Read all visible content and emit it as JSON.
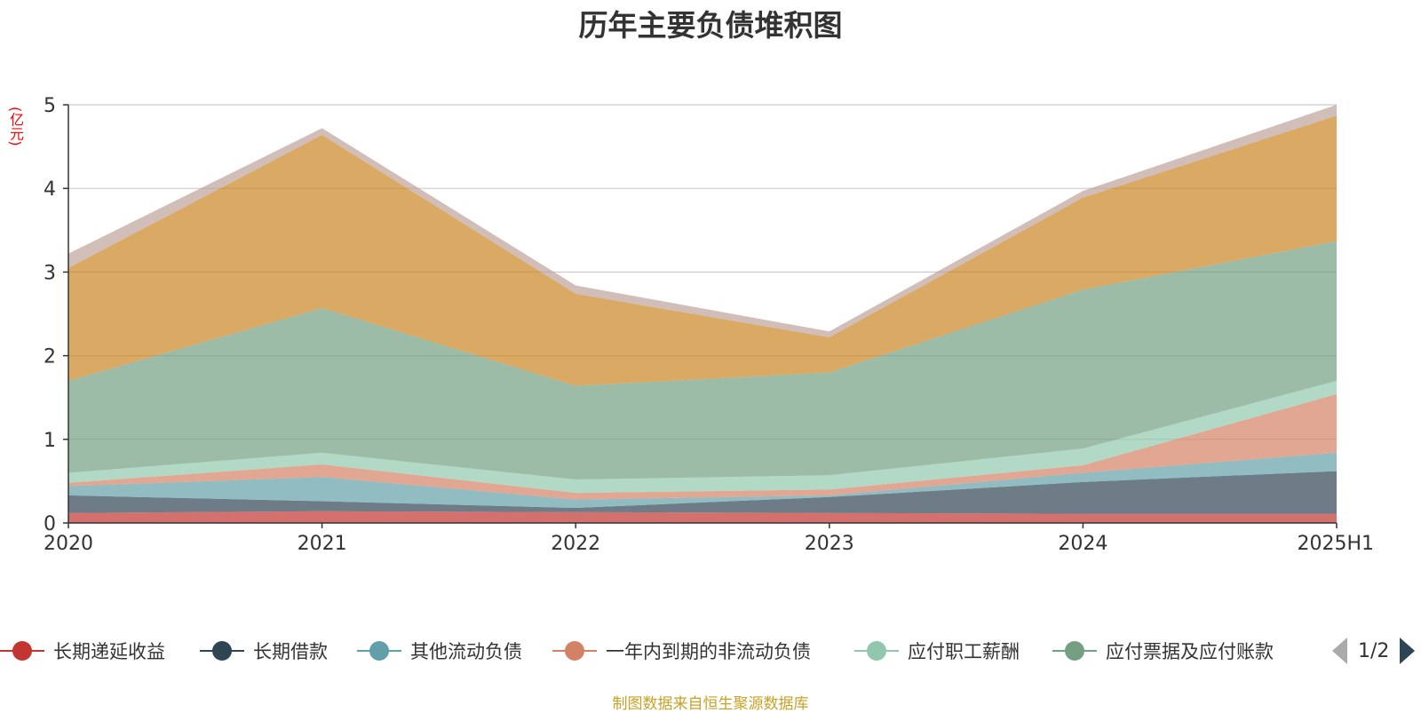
{
  "chart_data": {
    "type": "area",
    "stacked": true,
    "title": "历年主要负债堆积图",
    "ylabel": "(亿元)",
    "categories": [
      "2020",
      "2021",
      "2022",
      "2023",
      "2024",
      "2025H1"
    ],
    "ylim": [
      0,
      5
    ],
    "yticks": [
      0,
      1,
      2,
      3,
      4,
      5
    ],
    "grid": true,
    "legend_position": "bottom",
    "series": [
      {
        "name": "长期递延收益",
        "color": "#c23531",
        "values": [
          0.12,
          0.14,
          0.13,
          0.12,
          0.11,
          0.11
        ]
      },
      {
        "name": "长期借款",
        "color": "#2f4554",
        "values": [
          0.21,
          0.12,
          0.05,
          0.19,
          0.38,
          0.51
        ]
      },
      {
        "name": "其他流动负债",
        "color": "#61a0a8",
        "values": [
          0.11,
          0.29,
          0.1,
          0.02,
          0.11,
          0.22
        ]
      },
      {
        "name": "一年内到期的非流动负债",
        "color": "#d48265",
        "values": [
          0.04,
          0.15,
          0.08,
          0.07,
          0.09,
          0.7
        ]
      },
      {
        "name": "应付职工薪酬",
        "color": "#91c7ae",
        "values": [
          0.12,
          0.14,
          0.16,
          0.17,
          0.2,
          0.16
        ]
      },
      {
        "name": "应付票据及应付账款",
        "color": "#749f83",
        "values": [
          1.1,
          1.73,
          1.12,
          1.23,
          1.9,
          1.67
        ]
      },
      {
        "name": "",
        "color": "#ca8622",
        "values": [
          1.35,
          2.07,
          1.1,
          0.42,
          1.1,
          1.5
        ]
      },
      {
        "name": "",
        "color": "#bda29a",
        "values": [
          0.17,
          0.08,
          0.1,
          0.07,
          0.08,
          0.13
        ]
      }
    ]
  },
  "legend": {
    "items": [
      {
        "label": "长期递延收益",
        "color": "#c23531"
      },
      {
        "label": "长期借款",
        "color": "#2f4554"
      },
      {
        "label": "其他流动负债",
        "color": "#61a0a8"
      },
      {
        "label": "一年内到期的非流动负债",
        "color": "#d48265"
      },
      {
        "label": "应付职工薪酬",
        "color": "#91c7ae"
      },
      {
        "label": "应付票据及应付账款",
        "color": "#749f83"
      }
    ],
    "page_text": "1/2"
  },
  "source_note": "制图数据来自恒生聚源数据库"
}
